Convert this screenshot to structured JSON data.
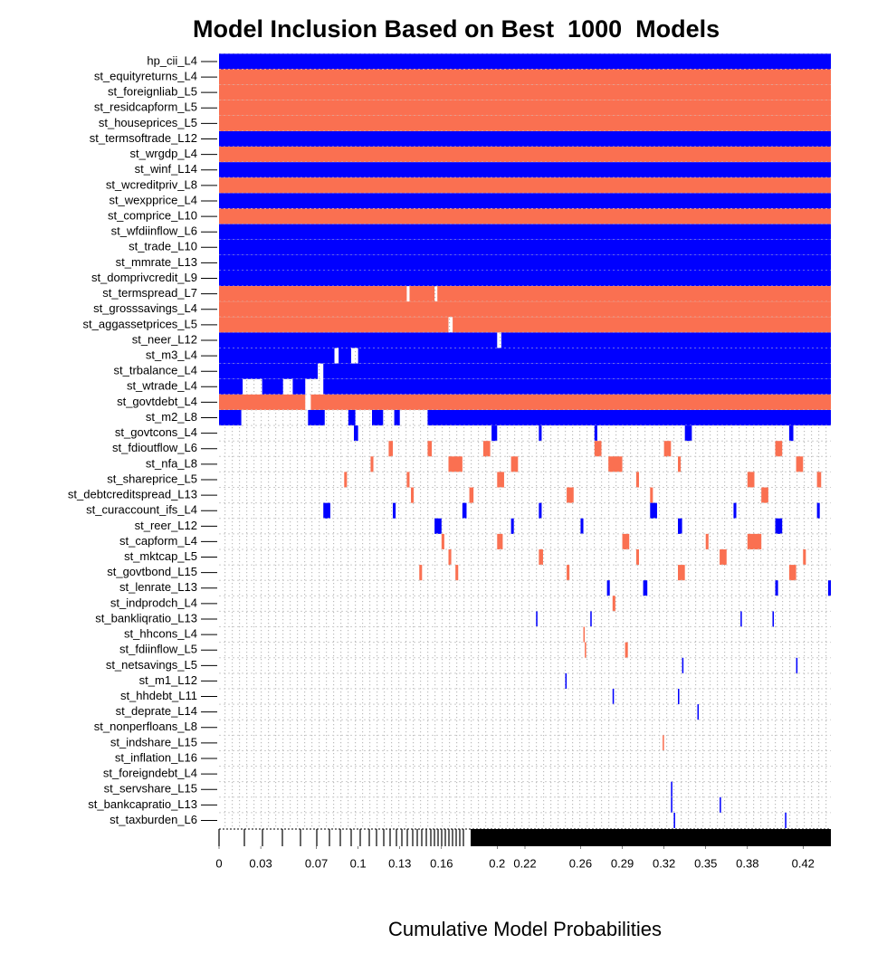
{
  "chart_data": {
    "type": "inclusion",
    "title": "Model Inclusion Based on Best  1000  Models",
    "x_label": "Cumulative Model Probabilities",
    "xlim": [
      0,
      0.44
    ],
    "xticks": [
      0,
      0.03,
      0.07,
      0.1,
      0.13,
      0.16,
      0.2,
      0.22,
      0.26,
      0.29,
      0.32,
      0.35,
      0.38,
      0.42
    ],
    "categories": [
      "hp_cii_L4",
      "st_equityreturns_L4",
      "st_foreignliab_L5",
      "st_residcapform_L5",
      "st_houseprices_L5",
      "st_termsoftrade_L12",
      "st_wrgdp_L4",
      "st_winf_L14",
      "st_wcreditpriv_L8",
      "st_wexpprice_L4",
      "st_comprice_L10",
      "st_wfdiinflow_L6",
      "st_trade_L10",
      "st_mmrate_L13",
      "st_domprivcredit_L9",
      "st_termspread_L7",
      "st_grosssavings_L4",
      "st_aggassetprices_L5",
      "st_neer_L12",
      "st_m3_L4",
      "st_trbalance_L4",
      "st_wtrade_L4",
      "st_govtdebt_L4",
      "st_m2_L8",
      "st_govtcons_L4",
      "st_fdioutflow_L6",
      "st_nfa_L8",
      "st_shareprice_L5",
      "st_debtcreditspread_L13",
      "st_curaccount_ifs_L4",
      "st_reer_L12",
      "st_capform_L4",
      "st_mktcap_L5",
      "st_govtbond_L15",
      "st_lenrate_L13",
      "st_indprodch_L4",
      "st_bankliqratio_L13",
      "st_hhcons_L4",
      "st_fdiinflow_L5",
      "st_netsavings_L5",
      "st_m1_L12",
      "st_hhdebt_L11",
      "st_deprate_L14",
      "st_nonperfloans_L8",
      "st_indshare_L15",
      "st_inflation_L16",
      "st_foreigndebt_L4",
      "st_servshare_L15",
      "st_bankcapratio_L13",
      "st_taxburden_L6"
    ],
    "rows": [
      {
        "color": "#0000ff",
        "segments": [
          [
            0,
            0.44
          ]
        ]
      },
      {
        "color": "#fa7051",
        "segments": [
          [
            0,
            0.44
          ]
        ]
      },
      {
        "color": "#fa7051",
        "segments": [
          [
            0,
            0.44
          ]
        ]
      },
      {
        "color": "#fa7051",
        "segments": [
          [
            0,
            0.44
          ]
        ]
      },
      {
        "color": "#fa7051",
        "segments": [
          [
            0,
            0.44
          ]
        ]
      },
      {
        "color": "#0000ff",
        "segments": [
          [
            0,
            0.44
          ]
        ]
      },
      {
        "color": "#fa7051",
        "segments": [
          [
            0,
            0.44
          ]
        ]
      },
      {
        "color": "#0000ff",
        "segments": [
          [
            0,
            0.44
          ]
        ]
      },
      {
        "color": "#fa7051",
        "segments": [
          [
            0,
            0.44
          ]
        ]
      },
      {
        "color": "#0000ff",
        "segments": [
          [
            0,
            0.44
          ]
        ]
      },
      {
        "color": "#fa7051",
        "segments": [
          [
            0,
            0.44
          ]
        ]
      },
      {
        "color": "#0000ff",
        "segments": [
          [
            0,
            0.44
          ]
        ]
      },
      {
        "color": "#0000ff",
        "segments": [
          [
            0,
            0.44
          ]
        ]
      },
      {
        "color": "#0000ff",
        "segments": [
          [
            0,
            0.44
          ]
        ]
      },
      {
        "color": "#0000ff",
        "segments": [
          [
            0,
            0.44
          ]
        ]
      },
      {
        "color": "#fa7051",
        "segments": [
          [
            0,
            0.135
          ],
          [
            0.137,
            0.155
          ],
          [
            0.157,
            0.44
          ]
        ]
      },
      {
        "color": "#fa7051",
        "segments": [
          [
            0,
            0.44
          ]
        ]
      },
      {
        "color": "#fa7051",
        "segments": [
          [
            0,
            0.165
          ],
          [
            0.168,
            0.44
          ]
        ]
      },
      {
        "color": "#0000ff",
        "segments": [
          [
            0,
            0.2
          ],
          [
            0.203,
            0.44
          ]
        ]
      },
      {
        "color": "#0000ff",
        "segments": [
          [
            0,
            0.083
          ],
          [
            0.086,
            0.095
          ],
          [
            0.1,
            0.44
          ]
        ]
      },
      {
        "color": "#0000ff",
        "segments": [
          [
            0,
            0.071
          ],
          [
            0.075,
            0.44
          ]
        ]
      },
      {
        "color": "#0000ff",
        "segments": [
          [
            0,
            0.017
          ],
          [
            0.031,
            0.046
          ],
          [
            0.053,
            0.062
          ],
          [
            0.075,
            0.44
          ]
        ]
      },
      {
        "color": "#fa7051",
        "segments": [
          [
            0,
            0.062
          ],
          [
            0.066,
            0.44
          ]
        ]
      },
      {
        "color": "#0000ff",
        "segments": [
          [
            0,
            0.016
          ],
          [
            0.064,
            0.076
          ],
          [
            0.093,
            0.098
          ],
          [
            0.11,
            0.118
          ],
          [
            0.126,
            0.13
          ],
          [
            0.15,
            0.44
          ]
        ]
      },
      {
        "color": "#0000ff",
        "segments": [
          [
            0.097,
            0.1
          ],
          [
            0.196,
            0.2
          ],
          [
            0.23,
            0.232
          ],
          [
            0.27,
            0.272
          ],
          [
            0.335,
            0.34
          ],
          [
            0.41,
            0.413
          ]
        ]
      },
      {
        "color": "#fa7051",
        "segments": [
          [
            0.122,
            0.125
          ],
          [
            0.15,
            0.153
          ],
          [
            0.19,
            0.195
          ],
          [
            0.27,
            0.275
          ],
          [
            0.32,
            0.325
          ],
          [
            0.4,
            0.405
          ]
        ]
      },
      {
        "color": "#fa7051",
        "segments": [
          [
            0.109,
            0.111
          ],
          [
            0.165,
            0.175
          ],
          [
            0.21,
            0.215
          ],
          [
            0.28,
            0.29
          ],
          [
            0.33,
            0.332
          ],
          [
            0.415,
            0.42
          ]
        ]
      },
      {
        "color": "#fa7051",
        "segments": [
          [
            0.09,
            0.092
          ],
          [
            0.135,
            0.137
          ],
          [
            0.2,
            0.205
          ],
          [
            0.3,
            0.302
          ],
          [
            0.38,
            0.385
          ],
          [
            0.43,
            0.433
          ]
        ]
      },
      {
        "color": "#fa7051",
        "segments": [
          [
            0.138,
            0.14
          ],
          [
            0.18,
            0.183
          ],
          [
            0.25,
            0.255
          ],
          [
            0.31,
            0.312
          ],
          [
            0.39,
            0.395
          ]
        ]
      },
      {
        "color": "#0000ff",
        "segments": [
          [
            0.075,
            0.08
          ],
          [
            0.125,
            0.127
          ],
          [
            0.175,
            0.178
          ],
          [
            0.23,
            0.232
          ],
          [
            0.31,
            0.315
          ],
          [
            0.37,
            0.372
          ],
          [
            0.43,
            0.432
          ]
        ]
      },
      {
        "color": "#0000ff",
        "segments": [
          [
            0.155,
            0.16
          ],
          [
            0.21,
            0.212
          ],
          [
            0.26,
            0.262
          ],
          [
            0.33,
            0.333
          ],
          [
            0.4,
            0.405
          ]
        ]
      },
      {
        "color": "#fa7051",
        "segments": [
          [
            0.16,
            0.162
          ],
          [
            0.2,
            0.204
          ],
          [
            0.29,
            0.295
          ],
          [
            0.35,
            0.352
          ],
          [
            0.38,
            0.39
          ]
        ]
      },
      {
        "color": "#fa7051",
        "segments": [
          [
            0.165,
            0.167
          ],
          [
            0.23,
            0.233
          ],
          [
            0.3,
            0.302
          ],
          [
            0.36,
            0.365
          ],
          [
            0.42,
            0.422
          ]
        ]
      },
      {
        "color": "#fa7051",
        "segments": [
          [
            0.144,
            0.146
          ],
          [
            0.17,
            0.172
          ],
          [
            0.25,
            0.252
          ],
          [
            0.33,
            0.335
          ],
          [
            0.41,
            0.415
          ]
        ]
      },
      {
        "color": "#0000ff",
        "segments": [
          [
            0.279,
            0.281
          ],
          [
            0.305,
            0.308
          ],
          [
            0.4,
            0.402
          ],
          [
            0.438,
            0.44
          ]
        ]
      },
      {
        "color": "#fa7051",
        "segments": [
          [
            0.283,
            0.285
          ]
        ]
      },
      {
        "color": "#0000ff",
        "segments": [
          [
            0.228,
            0.229
          ],
          [
            0.267,
            0.268
          ],
          [
            0.375,
            0.376
          ],
          [
            0.398,
            0.399
          ]
        ]
      },
      {
        "color": "#fa7051",
        "segments": [
          [
            0.262,
            0.263
          ]
        ]
      },
      {
        "color": "#fa7051",
        "segments": [
          [
            0.263,
            0.264
          ],
          [
            0.292,
            0.294
          ]
        ]
      },
      {
        "color": "#0000ff",
        "segments": [
          [
            0.333,
            0.334
          ],
          [
            0.415,
            0.416
          ]
        ]
      },
      {
        "color": "#0000ff",
        "segments": [
          [
            0.249,
            0.25
          ]
        ]
      },
      {
        "color": "#0000ff",
        "segments": [
          [
            0.283,
            0.284
          ],
          [
            0.33,
            0.331
          ]
        ]
      },
      {
        "color": "#0000ff",
        "segments": [
          [
            0.344,
            0.345
          ]
        ]
      },
      {
        "color": "#0000ff",
        "segments": []
      },
      {
        "color": "#fa7051",
        "segments": [
          [
            0.319,
            0.32
          ]
        ]
      },
      {
        "color": "#0000ff",
        "segments": []
      },
      {
        "color": "#0000ff",
        "segments": []
      },
      {
        "color": "#0000ff",
        "segments": [
          [
            0.325,
            0.326
          ]
        ]
      },
      {
        "color": "#0000ff",
        "segments": [
          [
            0.325,
            0.326
          ],
          [
            0.36,
            0.361
          ]
        ]
      },
      {
        "color": "#0000ff",
        "segments": [
          [
            0.327,
            0.328
          ],
          [
            0.407,
            0.408
          ]
        ]
      }
    ]
  }
}
